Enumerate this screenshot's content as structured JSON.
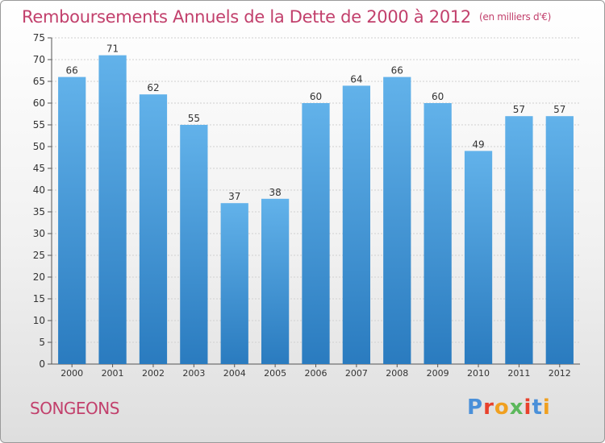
{
  "chart_data": {
    "type": "bar",
    "title": "Remboursements Annuels de la Dette de 2000 à 2012",
    "unit_note": "(en milliers d'€)",
    "categories": [
      "2000",
      "2001",
      "2002",
      "2003",
      "2004",
      "2005",
      "2006",
      "2007",
      "2008",
      "2009",
      "2010",
      "2011",
      "2012"
    ],
    "values": [
      66,
      71,
      62,
      55,
      37,
      38,
      60,
      64,
      66,
      60,
      49,
      57,
      57
    ],
    "ylim": [
      0,
      75
    ],
    "yticks": [
      0,
      5,
      10,
      15,
      20,
      25,
      30,
      35,
      40,
      45,
      50,
      55,
      60,
      65,
      70,
      75
    ],
    "grid": true,
    "bar_color_top": "#62b2ea",
    "bar_color_bottom": "#2a7bbf"
  },
  "footer": {
    "commune": "SONGEONS",
    "logo_text": "Proxiti",
    "logo_colors": [
      "#4a90d9",
      "#e8412c",
      "#f0a020",
      "#5cb85c",
      "#e8412c",
      "#4a90d9",
      "#f0a020"
    ]
  },
  "colors": {
    "title": "#c2406c",
    "grid": "#d0d0d0",
    "axis": "#555555"
  }
}
